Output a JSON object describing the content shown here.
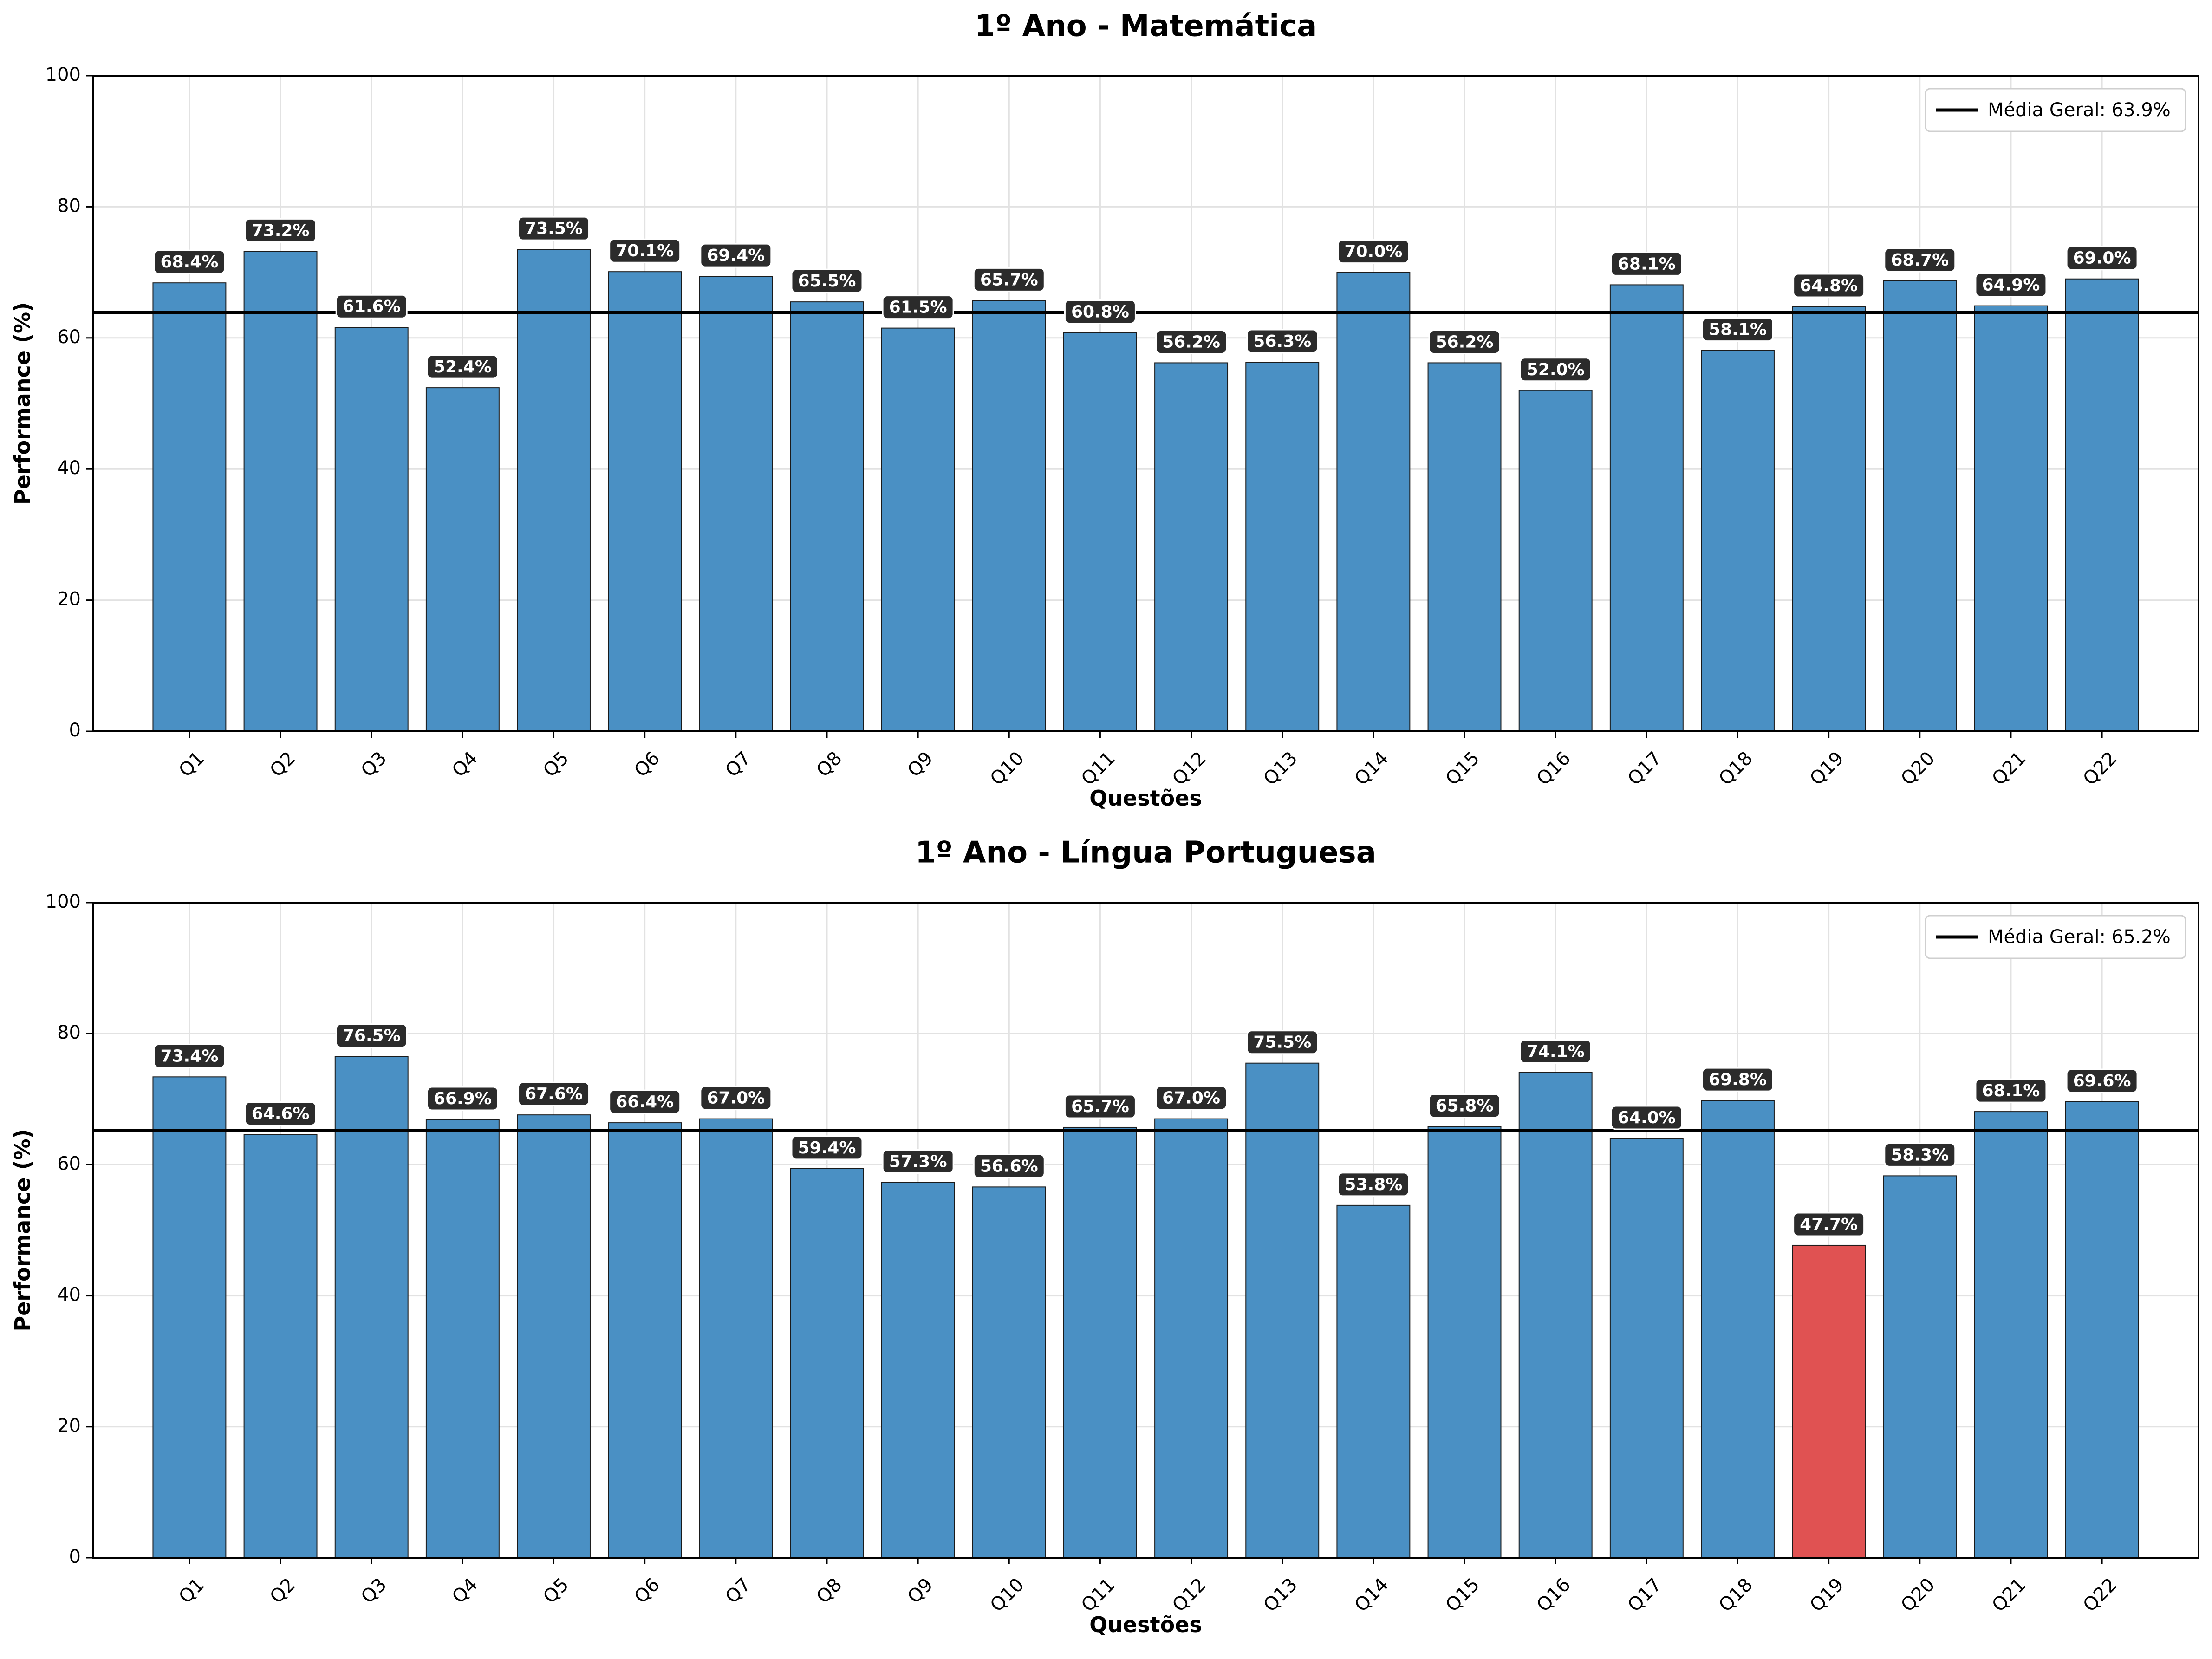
{
  "chart_data": [
    {
      "type": "bar",
      "title": "1º Ano - Matemática",
      "xlabel": "Questões",
      "ylabel": "Performance (%)",
      "ylim": [
        0,
        100
      ],
      "yticks": [
        "0",
        "20",
        "40",
        "60",
        "80",
        "100"
      ],
      "grid": true,
      "legend_position": "top-right",
      "categories": [
        "Q1",
        "Q2",
        "Q3",
        "Q4",
        "Q5",
        "Q6",
        "Q7",
        "Q8",
        "Q9",
        "Q10",
        "Q11",
        "Q12",
        "Q13",
        "Q14",
        "Q15",
        "Q16",
        "Q17",
        "Q18",
        "Q19",
        "Q20",
        "Q21",
        "Q22"
      ],
      "values": [
        68.4,
        73.2,
        61.6,
        52.4,
        73.5,
        70.1,
        69.4,
        65.5,
        61.5,
        65.7,
        60.8,
        56.2,
        56.3,
        70.0,
        56.2,
        52.0,
        68.1,
        58.1,
        64.8,
        68.7,
        64.9,
        69.0
      ],
      "value_labels": [
        "68.4%",
        "73.2%",
        "61.6%",
        "52.4%",
        "73.5%",
        "70.1%",
        "69.4%",
        "65.5%",
        "61.5%",
        "65.7%",
        "60.8%",
        "56.2%",
        "56.3%",
        "70.0%",
        "56.2%",
        "52.0%",
        "68.1%",
        "58.1%",
        "64.8%",
        "68.7%",
        "64.9%",
        "69.0%"
      ],
      "highlight": [],
      "mean": 63.9,
      "mean_label": "Média Geral: 63.9%"
    },
    {
      "type": "bar",
      "title": "1º Ano - Língua Portuguesa",
      "xlabel": "Questões",
      "ylabel": "Performance (%)",
      "ylim": [
        0,
        100
      ],
      "yticks": [
        "0",
        "20",
        "40",
        "60",
        "80",
        "100"
      ],
      "grid": true,
      "legend_position": "top-right",
      "categories": [
        "Q1",
        "Q2",
        "Q3",
        "Q4",
        "Q5",
        "Q6",
        "Q7",
        "Q8",
        "Q9",
        "Q10",
        "Q11",
        "Q12",
        "Q13",
        "Q14",
        "Q15",
        "Q16",
        "Q17",
        "Q18",
        "Q19",
        "Q20",
        "Q21",
        "Q22"
      ],
      "values": [
        73.4,
        64.6,
        76.5,
        66.9,
        67.6,
        66.4,
        67.0,
        59.4,
        57.3,
        56.6,
        65.7,
        67.0,
        75.5,
        53.8,
        65.8,
        74.1,
        64.0,
        69.8,
        47.7,
        58.3,
        68.1,
        69.6
      ],
      "value_labels": [
        "73.4%",
        "64.6%",
        "76.5%",
        "66.9%",
        "67.6%",
        "66.4%",
        "67.0%",
        "59.4%",
        "57.3%",
        "56.6%",
        "65.7%",
        "67.0%",
        "75.5%",
        "53.8%",
        "65.8%",
        "74.1%",
        "64.0%",
        "69.8%",
        "47.7%",
        "58.3%",
        "68.1%",
        "69.6%"
      ],
      "highlight": [
        "Q19"
      ],
      "mean": 65.2,
      "mean_label": "Média Geral: 65.2%"
    }
  ],
  "colors": {
    "bar": "#4a90c4",
    "bar_highlight": "#e05252",
    "bar_edge": "#1a1a1a",
    "mean_line": "#000000",
    "label_box": "#2b2b2b",
    "label_text": "#ffffff",
    "grid": "#e2e2e2"
  }
}
